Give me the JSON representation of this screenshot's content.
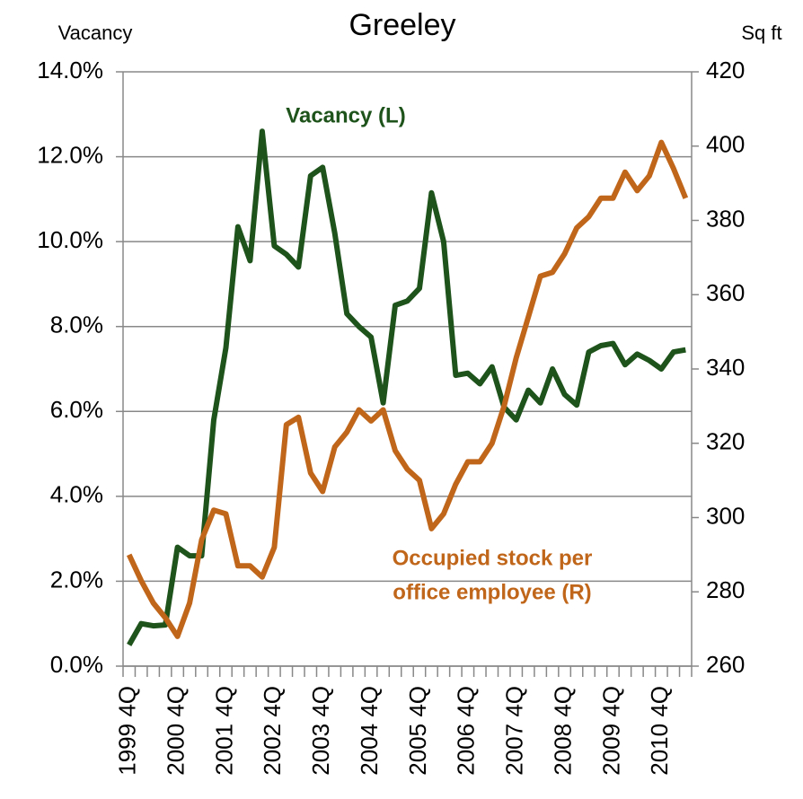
{
  "chart_data": {
    "type": "line",
    "title": "Greeley",
    "y_label": "Vacancy",
    "y2_label": "Sq ft",
    "categories": [
      "1999 4Q",
      null,
      null,
      null,
      "2000 4Q",
      null,
      null,
      null,
      "2001 4Q",
      null,
      null,
      null,
      "2002 4Q",
      null,
      null,
      null,
      "2003 4Q",
      null,
      null,
      null,
      "2004 4Q",
      null,
      null,
      null,
      "2005 4Q",
      null,
      null,
      null,
      "2006 4Q",
      null,
      null,
      null,
      "2007 4Q",
      null,
      null,
      null,
      "2008 4Q",
      null,
      null,
      null,
      "2009 4Q",
      null,
      null,
      null,
      "2010 4Q",
      null,
      null
    ],
    "series": [
      {
        "name": "Vacancy (L)",
        "color": "#1e531b",
        "axis": "y",
        "values": [
          0.5,
          1.0,
          0.95,
          0.97,
          2.8,
          2.6,
          2.6,
          5.8,
          7.5,
          10.35,
          9.55,
          12.6,
          9.9,
          9.7,
          9.4,
          11.55,
          11.75,
          10.2,
          8.3,
          8.0,
          7.75,
          6.2,
          8.5,
          8.6,
          8.9,
          11.15,
          10.0,
          6.85,
          6.9,
          6.65,
          7.05,
          6.1,
          5.8,
          6.5,
          6.2,
          7.0,
          6.4,
          6.15,
          7.4,
          7.55,
          7.6,
          7.1,
          7.35,
          7.2,
          7.0,
          7.4,
          7.45
        ]
      },
      {
        "name": "Occupied stock per office employee (R)",
        "color": "#c0661a",
        "axis": "y2",
        "values": [
          290,
          283,
          277,
          273,
          268,
          277,
          294,
          302,
          301,
          287,
          287,
          284,
          292,
          325,
          327,
          312,
          307,
          319,
          323,
          329,
          326,
          329,
          318,
          313,
          310,
          297,
          301,
          309,
          315,
          315,
          320,
          330,
          343,
          354,
          365,
          366,
          371,
          378,
          381,
          386,
          386,
          393,
          388,
          392,
          401,
          394,
          386
        ]
      }
    ],
    "annotations": [
      {
        "lines": [
          "Vacancy (L)"
        ]
      },
      {
        "lines": [
          "Occupied stock per",
          "office employee (R)"
        ]
      }
    ],
    "ylim": [
      0,
      14
    ],
    "yticks": [
      {
        "value": 0,
        "label": "0.0%"
      },
      {
        "value": 2,
        "label": "2.0%"
      },
      {
        "value": 4,
        "label": "4.0%"
      },
      {
        "value": 6,
        "label": "6.0%"
      },
      {
        "value": 8,
        "label": "8.0%"
      },
      {
        "value": 10,
        "label": "10.0%"
      },
      {
        "value": 12,
        "label": "12.0%"
      },
      {
        "value": 14,
        "label": "14.0%"
      }
    ],
    "y2lim": [
      260,
      420
    ],
    "y2ticks": [
      260,
      280,
      300,
      320,
      340,
      360,
      380,
      400,
      420
    ],
    "grid": true
  }
}
